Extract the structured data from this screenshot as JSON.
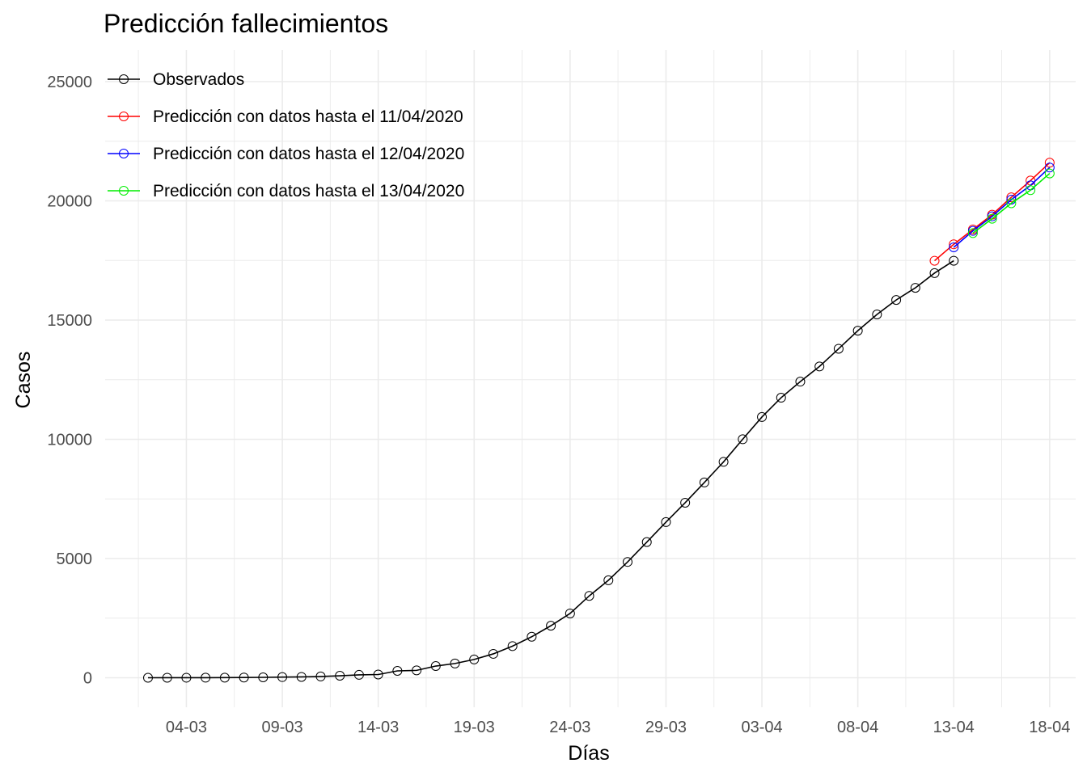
{
  "chart_data": {
    "type": "line",
    "title": "Predicción fallecimientos",
    "xlabel": "Días",
    "ylabel": "Casos",
    "ylim": [
      -1000,
      26000
    ],
    "yticks": [
      0,
      5000,
      10000,
      15000,
      20000,
      25000
    ],
    "x_tick_labels": [
      "04-03",
      "09-03",
      "14-03",
      "19-03",
      "24-03",
      "29-03",
      "03-04",
      "08-04",
      "13-04",
      "18-04"
    ],
    "grid": true,
    "legend_position": "top-left",
    "series": [
      {
        "name": "Observados",
        "color": "#000000",
        "x": [
          "02-03",
          "03-03",
          "04-03",
          "05-03",
          "06-03",
          "07-03",
          "08-03",
          "09-03",
          "10-03",
          "11-03",
          "12-03",
          "13-03",
          "14-03",
          "15-03",
          "16-03",
          "17-03",
          "18-03",
          "19-03",
          "20-03",
          "21-03",
          "22-03",
          "23-03",
          "24-03",
          "25-03",
          "26-03",
          "27-03",
          "28-03",
          "29-03",
          "30-03",
          "31-03",
          "01-04",
          "02-04",
          "03-04",
          "04-04",
          "05-04",
          "06-04",
          "07-04",
          "08-04",
          "09-04",
          "10-04",
          "11-04",
          "12-04",
          "13-04"
        ],
        "values": [
          0,
          1,
          2,
          3,
          5,
          10,
          17,
          28,
          35,
          54,
          84,
          121,
          136,
          288,
          309,
          491,
          598,
          767,
          1002,
          1326,
          1720,
          2182,
          2696,
          3434,
          4089,
          4858,
          5690,
          6528,
          7340,
          8189,
          9053,
          10003,
          10935,
          11744,
          12418,
          13055,
          13798,
          14555,
          15238,
          15843,
          16353,
          16972,
          17489
        ]
      },
      {
        "name": "Predicción con datos hasta el 11/04/2020",
        "color": "#ff0000",
        "x": [
          "12-04",
          "13-04",
          "14-04",
          "15-04",
          "16-04",
          "17-04",
          "18-04"
        ],
        "values": [
          17489,
          18180,
          18800,
          19420,
          20150,
          20850,
          21600
        ]
      },
      {
        "name": "Predicción con datos hasta el 12/04/2020",
        "color": "#0000ff",
        "x": [
          "13-04",
          "14-04",
          "15-04",
          "16-04",
          "17-04",
          "18-04"
        ],
        "values": [
          18050,
          18740,
          19350,
          20050,
          20650,
          21400
        ]
      },
      {
        "name": "Predicción con datos hasta el 13/04/2020",
        "color": "#00ee00",
        "x": [
          "14-04",
          "15-04",
          "16-04",
          "17-04",
          "18-04"
        ],
        "values": [
          18650,
          19250,
          19900,
          20450,
          21150
        ]
      }
    ]
  }
}
